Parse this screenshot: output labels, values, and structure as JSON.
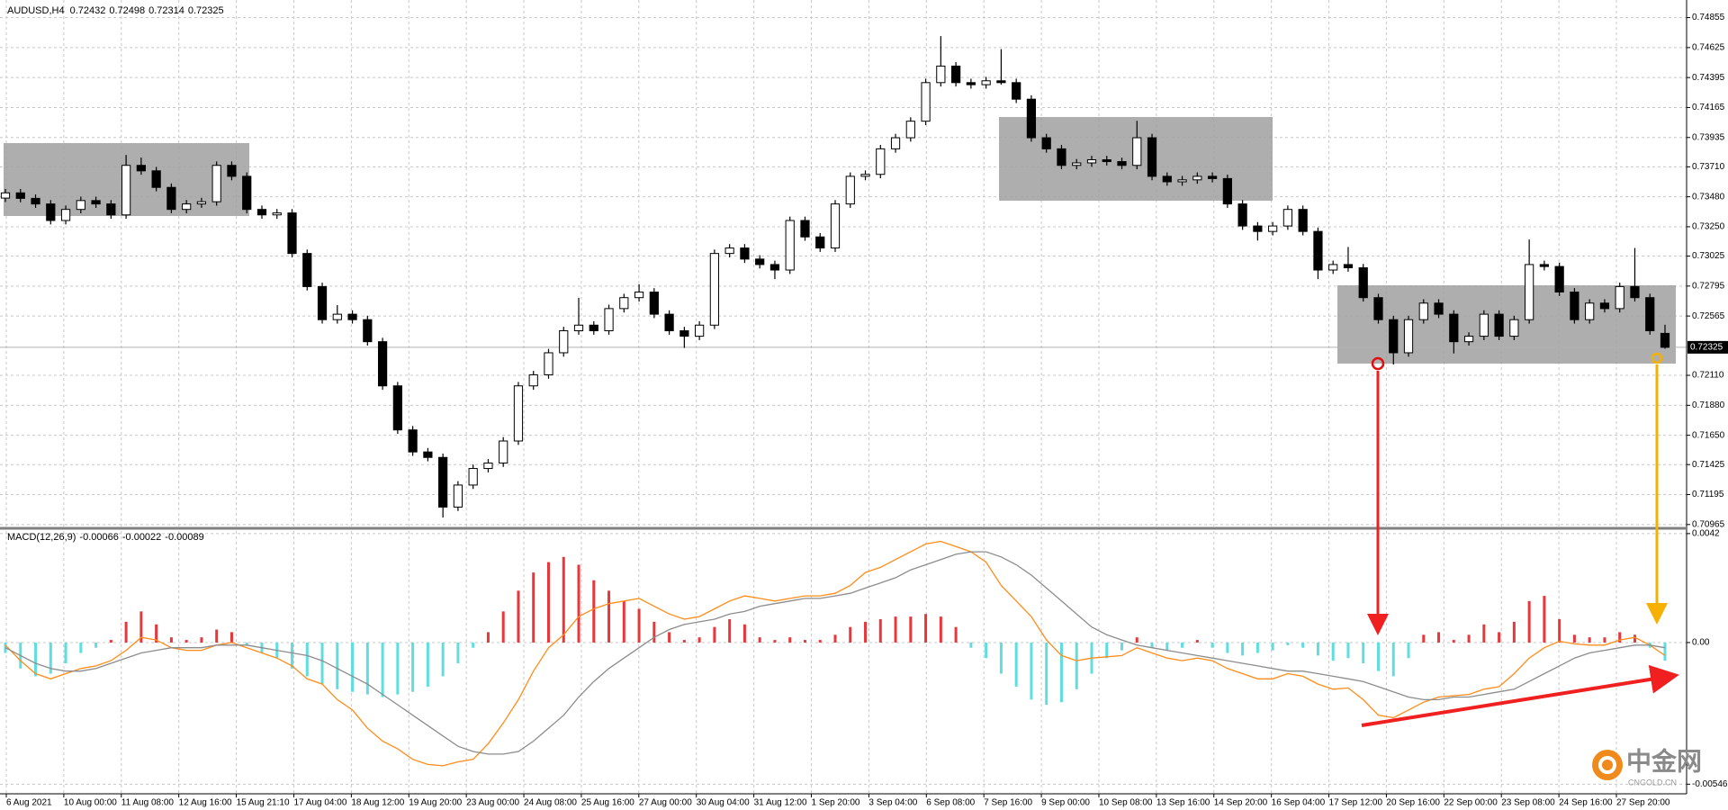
{
  "chart_data": [
    {
      "type": "candlestick",
      "symbol": "AUDUSD,H4",
      "quote": [
        0.72432,
        0.72498,
        0.72314,
        0.72325
      ],
      "ylim": [
        0.70943,
        0.7499
      ],
      "yticks": [
        0.74855,
        0.74625,
        0.74395,
        0.74165,
        0.73935,
        {
          "value": 0.7371,
          "label": "0.73710"
        },
        {
          "value": 0.7348,
          "label": "0.73480"
        },
        {
          "value": 0.7325,
          "label": "0.73250"
        },
        0.73025,
        0.72795,
        0.72565,
        {
          "value": 0.7211,
          "label": "0.72110"
        },
        {
          "value": 0.7188,
          "label": "0.71880"
        },
        {
          "value": 0.7165,
          "label": "0.71650"
        },
        0.71425,
        0.71195,
        0.70965
      ],
      "current_price": 0.72325,
      "grid": true,
      "up_color": "#ffffff",
      "down_color": "#000000",
      "time_labels": [
        "6 Aug 2021",
        "10 Aug 00:00",
        "11 Aug 08:00",
        "12 Aug 16:00",
        "15 Aug 21:10",
        "17 Aug 04:00",
        "18 Aug 12:00",
        "19 Aug 20:00",
        "23 Aug 00:00",
        "24 Aug 08:00",
        "25 Aug 16:00",
        "27 Aug 00:00",
        "30 Aug 04:00",
        "31 Aug 12:00",
        "1 Sep 20:00",
        "3 Sep 04:00",
        "6 Sep 08:00",
        "7 Sep 16:00",
        "9 Sep 00:00",
        "10 Sep 08:00",
        "13 Sep 16:00",
        "14 Sep 20:00",
        "16 Sep 04:00",
        "17 Sep 12:00",
        "20 Sep 16:00",
        "22 Sep 00:00",
        "23 Sep 08:00",
        "24 Sep 16:00",
        "27 Sep 20:00"
      ],
      "candles": [
        [
          0.7347,
          0.7354,
          0.7344,
          0.7351
        ],
        [
          0.7351,
          0.7354,
          0.73438,
          0.73468
        ],
        [
          0.73468,
          0.73498,
          0.73395,
          0.73425
        ],
        [
          0.73425,
          0.73455,
          0.73268,
          0.73298
        ],
        [
          0.73298,
          0.73413,
          0.73268,
          0.73383
        ],
        [
          0.73383,
          0.73481,
          0.73353,
          0.73451
        ],
        [
          0.73451,
          0.73481,
          0.73395,
          0.73425
        ],
        [
          0.73425,
          0.73455,
          0.73311,
          0.73341
        ],
        [
          0.73341,
          0.73801,
          0.73311,
          0.73721
        ],
        [
          0.73721,
          0.73781,
          0.73649,
          0.73679
        ],
        [
          0.73679,
          0.73709,
          0.73522,
          0.73552
        ],
        [
          0.73552,
          0.73582,
          0.73353,
          0.73383
        ],
        [
          0.73383,
          0.73455,
          0.73353,
          0.73425
        ],
        [
          0.73425,
          0.73472,
          0.73395,
          0.73442
        ],
        [
          0.73442,
          0.73751,
          0.73412,
          0.73721
        ],
        [
          0.73721,
          0.73751,
          0.73607,
          0.73637
        ],
        [
          0.73637,
          0.73667,
          0.73353,
          0.73383
        ],
        [
          0.73383,
          0.73413,
          0.73311,
          0.73341
        ],
        [
          0.73341,
          0.73386,
          0.73311,
          0.73356
        ],
        [
          0.73356,
          0.73386,
          0.73015,
          0.73045
        ],
        [
          0.73045,
          0.73075,
          0.72761,
          0.72791
        ],
        [
          0.72791,
          0.72821,
          0.72507,
          0.72537
        ],
        [
          0.72537,
          0.72649,
          0.72507,
          0.72579
        ],
        [
          0.72579,
          0.72609,
          0.72507,
          0.72537
        ],
        [
          0.72537,
          0.72567,
          0.72338,
          0.72368
        ],
        [
          0.72368,
          0.72398,
          0.71999,
          0.72029
        ],
        [
          0.72029,
          0.72059,
          0.71661,
          0.71691
        ],
        [
          0.71691,
          0.71721,
          0.71492,
          0.71522
        ],
        [
          0.71522,
          0.71552,
          0.7145,
          0.7148
        ],
        [
          0.7148,
          0.7151,
          0.71019,
          0.71099
        ],
        [
          0.71099,
          0.71298,
          0.71069,
          0.71268
        ],
        [
          0.71268,
          0.71425,
          0.71238,
          0.71395
        ],
        [
          0.71395,
          0.71467,
          0.71365,
          0.71437
        ],
        [
          0.71437,
          0.71636,
          0.71407,
          0.71606
        ],
        [
          0.71606,
          0.72059,
          0.71576,
          0.72029
        ],
        [
          0.72029,
          0.72144,
          0.71999,
          0.72114
        ],
        [
          0.72114,
          0.72313,
          0.72084,
          0.72283
        ],
        [
          0.72283,
          0.72482,
          0.72253,
          0.72452
        ],
        [
          0.72452,
          0.72705,
          0.72422,
          0.72495
        ],
        [
          0.72495,
          0.72525,
          0.72422,
          0.72452
        ],
        [
          0.72452,
          0.72652,
          0.72422,
          0.72622
        ],
        [
          0.72622,
          0.72736,
          0.72592,
          0.72706
        ],
        [
          0.72706,
          0.72809,
          0.72676,
          0.72749
        ],
        [
          0.72749,
          0.72779,
          0.72549,
          0.72579
        ],
        [
          0.72579,
          0.72609,
          0.72422,
          0.72452
        ],
        [
          0.72452,
          0.72482,
          0.7232,
          0.7241
        ],
        [
          0.7241,
          0.72525,
          0.7238,
          0.72495
        ],
        [
          0.72495,
          0.73075,
          0.72465,
          0.73045
        ],
        [
          0.73045,
          0.73117,
          0.73015,
          0.73087
        ],
        [
          0.73087,
          0.73117,
          0.72972,
          0.73002
        ],
        [
          0.73002,
          0.73032,
          0.7293,
          0.7296
        ],
        [
          0.7296,
          0.7299,
          0.72848,
          0.72918
        ],
        [
          0.72918,
          0.73328,
          0.72888,
          0.73298
        ],
        [
          0.73298,
          0.73328,
          0.73142,
          0.73172
        ],
        [
          0.73172,
          0.73202,
          0.73057,
          0.73087
        ],
        [
          0.73087,
          0.73455,
          0.73057,
          0.73425
        ],
        [
          0.73425,
          0.73667,
          0.73395,
          0.73637
        ],
        [
          0.73637,
          0.73682,
          0.73607,
          0.73652
        ],
        [
          0.73652,
          0.73878,
          0.73622,
          0.73848
        ],
        [
          0.73848,
          0.73963,
          0.73818,
          0.73933
        ],
        [
          0.73933,
          0.7409,
          0.73903,
          0.7406
        ],
        [
          0.7406,
          0.74386,
          0.7403,
          0.74356
        ],
        [
          0.74356,
          0.74713,
          0.74326,
          0.74483
        ],
        [
          0.74483,
          0.74513,
          0.74326,
          0.74356
        ],
        [
          0.74356,
          0.74386,
          0.7431,
          0.7434
        ],
        [
          0.7434,
          0.744,
          0.7431,
          0.7437
        ],
        [
          0.7437,
          0.74613,
          0.7434,
          0.74356
        ],
        [
          0.74356,
          0.74386,
          0.74199,
          0.74229
        ],
        [
          0.74229,
          0.74259,
          0.73903,
          0.73933
        ],
        [
          0.73933,
          0.73963,
          0.73818,
          0.73848
        ],
        [
          0.73848,
          0.73878,
          0.73691,
          0.73721
        ],
        [
          0.73721,
          0.7377,
          0.73691,
          0.7374
        ],
        [
          0.7374,
          0.73794,
          0.7371,
          0.73764
        ],
        [
          0.73764,
          0.73794,
          0.7372,
          0.7375
        ],
        [
          0.7375,
          0.7378,
          0.73691,
          0.73721
        ],
        [
          0.73721,
          0.74063,
          0.73691,
          0.73933
        ],
        [
          0.73933,
          0.73963,
          0.73607,
          0.73637
        ],
        [
          0.73637,
          0.73667,
          0.73565,
          0.73595
        ],
        [
          0.73595,
          0.7364,
          0.73565,
          0.7361
        ],
        [
          0.7361,
          0.73667,
          0.7358,
          0.73637
        ],
        [
          0.73637,
          0.73667,
          0.7359,
          0.7362
        ],
        [
          0.7362,
          0.7365,
          0.73395,
          0.73425
        ],
        [
          0.73425,
          0.73455,
          0.73226,
          0.73256
        ],
        [
          0.73256,
          0.73286,
          0.73144,
          0.73214
        ],
        [
          0.73214,
          0.73286,
          0.73184,
          0.73256
        ],
        [
          0.73256,
          0.73413,
          0.73226,
          0.73383
        ],
        [
          0.73383,
          0.73413,
          0.73184,
          0.73214
        ],
        [
          0.73214,
          0.73244,
          0.72848,
          0.72918
        ],
        [
          0.72918,
          0.7299,
          0.72888,
          0.7296
        ],
        [
          0.7296,
          0.73095,
          0.72905,
          0.72935
        ],
        [
          0.72935,
          0.72965,
          0.72676,
          0.72706
        ],
        [
          0.72706,
          0.72736,
          0.72507,
          0.72537
        ],
        [
          0.72537,
          0.72567,
          0.72193,
          0.72283
        ],
        [
          0.72283,
          0.72567,
          0.72253,
          0.72537
        ],
        [
          0.72537,
          0.72694,
          0.72507,
          0.72664
        ],
        [
          0.72664,
          0.72694,
          0.72549,
          0.72579
        ],
        [
          0.72579,
          0.72609,
          0.72278,
          0.72368
        ],
        [
          0.72368,
          0.7244,
          0.72338,
          0.7241
        ],
        [
          0.7241,
          0.72609,
          0.7238,
          0.72579
        ],
        [
          0.72579,
          0.72609,
          0.7238,
          0.7241
        ],
        [
          0.7241,
          0.72567,
          0.7238,
          0.72537
        ],
        [
          0.72537,
          0.73152,
          0.72507,
          0.7296
        ],
        [
          0.7296,
          0.7299,
          0.72915,
          0.72945
        ],
        [
          0.72945,
          0.72975,
          0.72719,
          0.72749
        ],
        [
          0.72749,
          0.72779,
          0.72507,
          0.72537
        ],
        [
          0.72537,
          0.72694,
          0.72507,
          0.72664
        ],
        [
          0.72664,
          0.72694,
          0.72592,
          0.72622
        ],
        [
          0.72622,
          0.72821,
          0.72592,
          0.72791
        ],
        [
          0.72791,
          0.73087,
          0.72676,
          0.72706
        ],
        [
          0.72706,
          0.72736,
          0.72422,
          0.72452
        ],
        [
          0.72432,
          0.72498,
          0.72314,
          0.72325
        ]
      ]
    },
    {
      "type": "macd",
      "title": "MACD(12,26,9)",
      "readout": [
        -0.00066,
        -0.00022,
        -0.00089
      ],
      "ylim": [
        -0.00583,
        0.0043
      ],
      "yticks": [
        0.0042,
        {
          "value": 0,
          "label": "0.00"
        },
        -0.00546
      ],
      "histogram": {
        "up_color": "#e8363a",
        "down_color": "#5fdde0",
        "values": [
          -0.0004,
          -0.001,
          -0.0013,
          -0.0012,
          -0.0008,
          -0.0004,
          -0.0002,
          0.0001,
          0.0008,
          0.0012,
          0.0007,
          0.0002,
          0.0001,
          0.0002,
          0.0005,
          0.0004,
          -0.0001,
          -0.0004,
          -0.0006,
          -0.001,
          -0.0013,
          -0.0016,
          -0.0018,
          -0.0019,
          -0.002,
          -0.0021,
          -0.002,
          -0.0019,
          -0.0017,
          -0.0013,
          -0.0008,
          -0.0002,
          0.0004,
          0.0012,
          0.002,
          0.0027,
          0.0031,
          0.0033,
          0.003,
          0.0024,
          0.002,
          0.0016,
          0.0013,
          0.0008,
          0.0004,
          0.0001,
          0.0002,
          0.0006,
          0.0009,
          0.0007,
          0.0002,
          0.0001,
          0.0002,
          0.0001,
          0.0001,
          0.0003,
          0.0006,
          0.0008,
          0.0009,
          0.001,
          0.001,
          0.0011,
          0.001,
          0.0006,
          -0.0002,
          -0.0006,
          -0.0012,
          -0.0017,
          -0.0022,
          -0.0024,
          -0.0023,
          -0.0018,
          -0.0012,
          -0.0006,
          -0.0003,
          0.0002,
          -0.0002,
          -0.0003,
          -0.0002,
          0.0001,
          -0.0002,
          -0.0004,
          -0.0005,
          -0.0004,
          -0.0003,
          -0.0001,
          -0.0002,
          -0.0005,
          -0.0007,
          -0.0006,
          -0.0008,
          -0.0011,
          -0.0013,
          -0.0006,
          0.0003,
          0.0004,
          0.0001,
          0.0003,
          0.0007,
          0.0004,
          0.0008,
          0.0016,
          0.0018,
          0.0009,
          0.0003,
          0.0002,
          0.0002,
          0.0004,
          0.0003,
          -0.0002,
          -0.0007
        ]
      },
      "series": [
        {
          "color": "#ff8c1a",
          "values": [
            -0.0001,
            -0.0007,
            -0.0012,
            -0.0014,
            -0.0012,
            -0.001,
            -0.0009,
            -0.0007,
            -0.0003,
            0.0002,
            0.0001,
            -0.0002,
            -0.0003,
            -0.0003,
            -0.0001,
            0,
            -0.0002,
            -0.0004,
            -0.0006,
            -0.0009,
            -0.0014,
            -0.0016,
            -0.0022,
            -0.0026,
            -0.0033,
            -0.0038,
            -0.0041,
            -0.0045,
            -0.0047,
            -0.00475,
            -0.0046,
            -0.0045,
            -0.0039,
            -0.0031,
            -0.0022,
            -0.0011,
            -0.0002,
            0.0003,
            0.001,
            0.0013,
            0.0015,
            0.0016,
            0.0017,
            0.0014,
            0.0011,
            0.0009,
            0.001,
            0.0013,
            0.0016,
            0.0018,
            0.0017,
            0.0016,
            0.0017,
            0.0018,
            0.0018,
            0.0019,
            0.0022,
            0.0027,
            0.0029,
            0.0032,
            0.0035,
            0.0038,
            0.0039,
            0.0037,
            0.0035,
            0.0031,
            0.0022,
            0.0016,
            0.001,
            0.0001,
            -0.0005,
            -0.0007,
            -0.0006,
            -0.00055,
            -0.0005,
            -0.0002,
            -0.0004,
            -0.0006,
            -0.0007,
            -0.0006,
            -0.0007,
            -0.001,
            -0.0012,
            -0.0014,
            -0.0014,
            -0.0012,
            -0.0013,
            -0.0016,
            -0.0018,
            -0.00175,
            -0.0022,
            -0.0028,
            -0.0029,
            -0.0026,
            -0.0023,
            -0.0021,
            -0.00205,
            -0.002,
            -0.0018,
            -0.0017,
            -0.0012,
            -0.0006,
            -0.0002,
            5e-05,
            -5e-05,
            -0.0001,
            -0.0001,
            0.0001,
            0.0002,
            -0.0001,
            -0.0005
          ]
        },
        {
          "color": "#8c8c8c",
          "values": [
            -0.0002,
            -0.0005,
            -0.0008,
            -0.001,
            -0.0011,
            -0.0011,
            -0.001,
            -0.0008,
            -0.0006,
            -0.0004,
            -0.0003,
            -0.0002,
            -0.0002,
            -0.0002,
            -0.0001,
            -0.0001,
            -0.0001,
            -0.0002,
            -0.0003,
            -0.0004,
            -0.0005,
            -0.0007,
            -0.001,
            -0.0013,
            -0.0016,
            -0.002,
            -0.0024,
            -0.0028,
            -0.0032,
            -0.0036,
            -0.004,
            -0.0042,
            -0.0043,
            -0.0043,
            -0.0042,
            -0.0038,
            -0.0033,
            -0.0028,
            -0.0021,
            -0.0015,
            -0.001,
            -0.0006,
            -0.0002,
            0.0002,
            0.0005,
            0.0007,
            0.0008,
            0.0009,
            0.0011,
            0.0012,
            0.0014,
            0.0015,
            0.0016,
            0.0017,
            0.0017,
            0.0018,
            0.0019,
            0.0021,
            0.0023,
            0.0025,
            0.0028,
            0.003,
            0.0032,
            0.0034,
            0.0035,
            0.0035,
            0.0033,
            0.003,
            0.0026,
            0.0021,
            0.0016,
            0.0011,
            0.0006,
            0.0003,
            0.0001,
            -0.0001,
            -0.0002,
            -0.0003,
            -0.0004,
            -0.0005,
            -0.0006,
            -0.0007,
            -0.0008,
            -0.0009,
            -0.001,
            -0.0011,
            -0.0011,
            -0.0012,
            -0.0013,
            -0.0014,
            -0.0015,
            -0.0017,
            -0.0019,
            -0.0021,
            -0.0022,
            -0.0022,
            -0.0021,
            -0.0021,
            -0.002,
            -0.0019,
            -0.0018,
            -0.0015,
            -0.0012,
            -0.0009,
            -0.0006,
            -0.0004,
            -0.0003,
            -0.0002,
            -0.0001,
            -0.0001,
            -0.0002
          ]
        }
      ]
    }
  ],
  "watermark": {
    "logo": "中金网",
    "site": "CNGOLD.CN"
  }
}
